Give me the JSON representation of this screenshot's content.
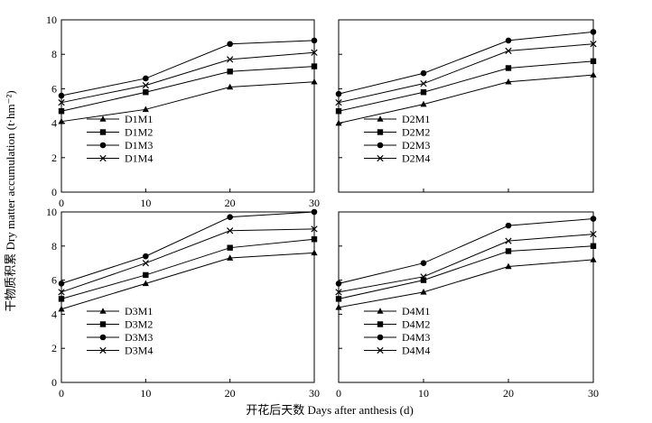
{
  "xlabel": "开花后天数 Days after anthesis (d)",
  "ylabel": "干物质积累 Dry matter accumulation (t·hm⁻²)",
  "chart_data": [
    {
      "type": "line",
      "x": [
        0,
        10,
        20,
        30
      ],
      "xlim": [
        0,
        30
      ],
      "ylim": [
        0,
        10
      ],
      "xticks": [
        "0",
        "10",
        "20",
        "30"
      ],
      "yticks": [
        "0",
        "2",
        "4",
        "6",
        "8",
        "10"
      ],
      "legend_position": "lower-left",
      "series": [
        {
          "name": "D1M1",
          "marker": "triangle",
          "values": [
            4.1,
            4.8,
            6.1,
            6.4
          ]
        },
        {
          "name": "D1M2",
          "marker": "square",
          "values": [
            4.7,
            5.8,
            7.0,
            7.3
          ]
        },
        {
          "name": "D1M3",
          "marker": "circle",
          "values": [
            5.6,
            6.6,
            8.6,
            8.8
          ]
        },
        {
          "name": "D1M4",
          "marker": "x",
          "values": [
            5.2,
            6.2,
            7.7,
            8.1
          ]
        }
      ]
    },
    {
      "type": "line",
      "x": [
        0,
        10,
        20,
        30
      ],
      "xlim": [
        0,
        30
      ],
      "ylim": [
        0,
        10
      ],
      "xticks": [],
      "yticks": [],
      "legend_position": "lower-left",
      "series": [
        {
          "name": "D2M1",
          "marker": "triangle",
          "values": [
            4.0,
            5.1,
            6.4,
            6.8
          ]
        },
        {
          "name": "D2M2",
          "marker": "square",
          "values": [
            4.7,
            5.8,
            7.2,
            7.6
          ]
        },
        {
          "name": "D2M3",
          "marker": "circle",
          "values": [
            5.7,
            6.9,
            8.8,
            9.3
          ]
        },
        {
          "name": "D2M4",
          "marker": "x",
          "values": [
            5.2,
            6.3,
            8.2,
            8.6
          ]
        }
      ]
    },
    {
      "type": "line",
      "x": [
        0,
        10,
        20,
        30
      ],
      "xlim": [
        0,
        30
      ],
      "ylim": [
        0,
        10
      ],
      "xticks": [
        "0",
        "10",
        "20",
        "30"
      ],
      "yticks": [
        "0",
        "2",
        "4",
        "6",
        "8",
        "10"
      ],
      "legend_position": "lower-left",
      "series": [
        {
          "name": "D3M1",
          "marker": "triangle",
          "values": [
            4.3,
            5.8,
            7.3,
            7.6
          ]
        },
        {
          "name": "D3M2",
          "marker": "square",
          "values": [
            4.9,
            6.3,
            7.9,
            8.4
          ]
        },
        {
          "name": "D3M3",
          "marker": "circle",
          "values": [
            5.8,
            7.4,
            9.7,
            10.0
          ]
        },
        {
          "name": "D3M4",
          "marker": "x",
          "values": [
            5.3,
            7.0,
            8.9,
            9.0
          ]
        }
      ]
    },
    {
      "type": "line",
      "x": [
        0,
        10,
        20,
        30
      ],
      "xlim": [
        0,
        30
      ],
      "ylim": [
        0,
        10
      ],
      "xticks": [
        "0",
        "10",
        "20",
        "30"
      ],
      "yticks": [],
      "legend_position": "lower-left",
      "series": [
        {
          "name": "D4M1",
          "marker": "triangle",
          "values": [
            4.4,
            5.3,
            6.8,
            7.2
          ]
        },
        {
          "name": "D4M2",
          "marker": "square",
          "values": [
            4.9,
            6.0,
            7.7,
            8.0
          ]
        },
        {
          "name": "D4M3",
          "marker": "circle",
          "values": [
            5.8,
            7.0,
            9.2,
            9.6
          ]
        },
        {
          "name": "D4M4",
          "marker": "x",
          "values": [
            5.3,
            6.2,
            8.3,
            8.7
          ]
        }
      ]
    }
  ]
}
